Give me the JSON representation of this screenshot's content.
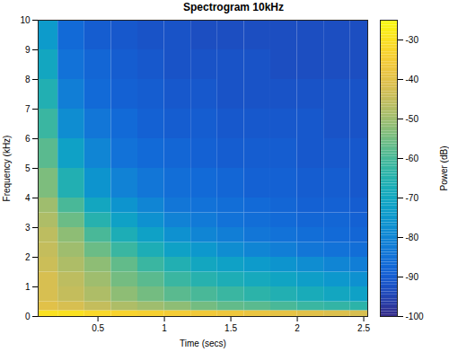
{
  "chart_data": {
    "type": "heatmap",
    "title": "Spectrogram 10kHz",
    "x_label": "Time (secs)",
    "y_label": "Frequency (kHz)",
    "xlim": [
      0.05,
      2.53
    ],
    "xticks": [
      0.5,
      1,
      1.5,
      2,
      2.5
    ],
    "ylim": [
      0,
      10
    ],
    "yticks": [
      0,
      1,
      2,
      3,
      4,
      5,
      6,
      7,
      8,
      9,
      10
    ],
    "time_bins": [
      0.05,
      0.2,
      0.4,
      0.6,
      0.8,
      1.0,
      1.2,
      1.4,
      1.6,
      1.8,
      2.0,
      2.2,
      2.4,
      2.53
    ],
    "freq_bins": [
      0,
      0.2,
      0.5,
      1,
      1.5,
      2,
      2.5,
      3,
      3.5,
      4,
      5,
      6,
      7,
      8,
      9,
      10
    ],
    "power": [
      [
        -30,
        -30,
        -32,
        -33,
        -34,
        -35,
        -36,
        -37,
        -38,
        -39,
        -40,
        -41,
        -42
      ],
      [
        -40,
        -42,
        -45,
        -48,
        -50,
        -52,
        -55,
        -57,
        -58,
        -60,
        -62,
        -63,
        -64
      ],
      [
        -42,
        -45,
        -48,
        -52,
        -55,
        -58,
        -60,
        -62,
        -64,
        -66,
        -68,
        -70,
        -72
      ],
      [
        -42,
        -46,
        -50,
        -55,
        -58,
        -62,
        -65,
        -67,
        -69,
        -71,
        -73,
        -75,
        -77
      ],
      [
        -44,
        -48,
        -52,
        -57,
        -62,
        -66,
        -70,
        -72,
        -74,
        -76,
        -78,
        -80,
        -82
      ],
      [
        -45,
        -50,
        -56,
        -62,
        -67,
        -72,
        -75,
        -78,
        -80,
        -82,
        -84,
        -85,
        -86
      ],
      [
        -46,
        -52,
        -60,
        -67,
        -72,
        -77,
        -80,
        -82,
        -84,
        -85,
        -86,
        -87,
        -88
      ],
      [
        -48,
        -56,
        -65,
        -72,
        -77,
        -81,
        -83,
        -85,
        -86,
        -87,
        -88,
        -88,
        -89
      ],
      [
        -50,
        -60,
        -70,
        -76,
        -80,
        -84,
        -85,
        -86,
        -87,
        -88,
        -89,
        -89,
        -90
      ],
      [
        -54,
        -66,
        -76,
        -81,
        -84,
        -86,
        -87,
        -88,
        -89,
        -89,
        -90,
        -90,
        -91
      ],
      [
        -58,
        -72,
        -80,
        -85,
        -87,
        -88,
        -89,
        -90,
        -90,
        -90,
        -91,
        -91,
        -91
      ],
      [
        -62,
        -78,
        -84,
        -87,
        -89,
        -90,
        -90,
        -91,
        -91,
        -91,
        -91,
        -92,
        -92
      ],
      [
        -66,
        -82,
        -87,
        -89,
        -90,
        -91,
        -91,
        -92,
        -92,
        -92,
        -92,
        -92,
        -92
      ],
      [
        -70,
        -85,
        -88,
        -90,
        -91,
        -92,
        -92,
        -92,
        -92,
        -93,
        -93,
        -93,
        -93
      ],
      [
        -74,
        -87,
        -90,
        -91,
        -92,
        -92,
        -93,
        -93,
        -93,
        -93,
        -93,
        -93,
        -93
      ]
    ],
    "colorbar": {
      "label": "Power (dB)",
      "lim": [
        -100,
        -25
      ],
      "ticks": [
        -100,
        -90,
        -80,
        -70,
        -60,
        -50,
        -40,
        -30
      ]
    }
  }
}
